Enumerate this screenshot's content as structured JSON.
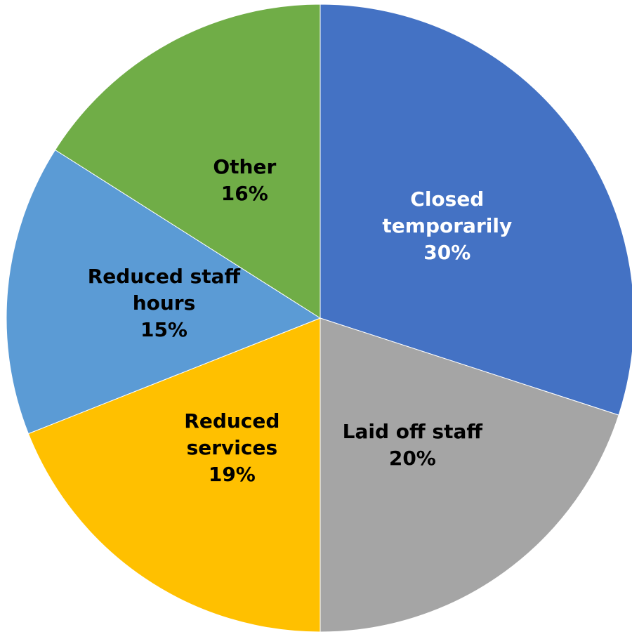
{
  "chart_data": {
    "type": "pie",
    "categories": [
      "Closed temporarily",
      "Laid off staff",
      "Reduced services",
      "Reduced staff hours",
      "Other"
    ],
    "values": [
      30,
      20,
      19,
      15,
      16
    ],
    "value_labels": [
      "30%",
      "20%",
      "19%",
      "15%",
      "16%"
    ],
    "colors": [
      "#4472c4",
      "#a5a5a5",
      "#ffc000",
      "#5b9bd5",
      "#70ad47"
    ],
    "label_colors": [
      "#ffffff",
      "#000000",
      "#000000",
      "#000000",
      "#000000"
    ]
  }
}
